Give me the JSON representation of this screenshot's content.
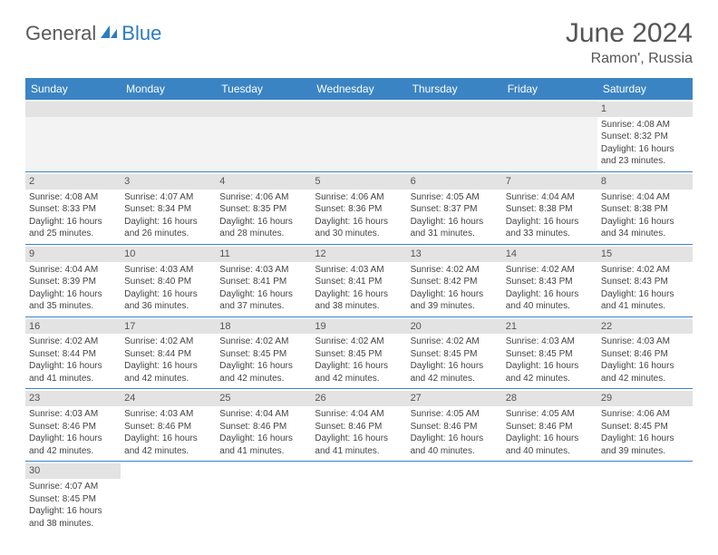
{
  "logo": {
    "text1": "General",
    "text2": "Blue"
  },
  "title": "June 2024",
  "location": "Ramon', Russia",
  "weekdays": [
    "Sunday",
    "Monday",
    "Tuesday",
    "Wednesday",
    "Thursday",
    "Friday",
    "Saturday"
  ],
  "colors": {
    "header_bg": "#3b84c4",
    "header_text": "#ffffff",
    "daynum_bg": "#e3e3e3",
    "logo_gray": "#5a5a5a",
    "logo_blue": "#2d7bc0",
    "text": "#444444",
    "border": "#3b84c4"
  },
  "weeks": [
    [
      {
        "n": "",
        "sr": "",
        "ss": "",
        "dl": ""
      },
      {
        "n": "",
        "sr": "",
        "ss": "",
        "dl": ""
      },
      {
        "n": "",
        "sr": "",
        "ss": "",
        "dl": ""
      },
      {
        "n": "",
        "sr": "",
        "ss": "",
        "dl": ""
      },
      {
        "n": "",
        "sr": "",
        "ss": "",
        "dl": ""
      },
      {
        "n": "",
        "sr": "",
        "ss": "",
        "dl": ""
      },
      {
        "n": "1",
        "sr": "Sunrise: 4:08 AM",
        "ss": "Sunset: 8:32 PM",
        "dl": "Daylight: 16 hours and 23 minutes."
      }
    ],
    [
      {
        "n": "2",
        "sr": "Sunrise: 4:08 AM",
        "ss": "Sunset: 8:33 PM",
        "dl": "Daylight: 16 hours and 25 minutes."
      },
      {
        "n": "3",
        "sr": "Sunrise: 4:07 AM",
        "ss": "Sunset: 8:34 PM",
        "dl": "Daylight: 16 hours and 26 minutes."
      },
      {
        "n": "4",
        "sr": "Sunrise: 4:06 AM",
        "ss": "Sunset: 8:35 PM",
        "dl": "Daylight: 16 hours and 28 minutes."
      },
      {
        "n": "5",
        "sr": "Sunrise: 4:06 AM",
        "ss": "Sunset: 8:36 PM",
        "dl": "Daylight: 16 hours and 30 minutes."
      },
      {
        "n": "6",
        "sr": "Sunrise: 4:05 AM",
        "ss": "Sunset: 8:37 PM",
        "dl": "Daylight: 16 hours and 31 minutes."
      },
      {
        "n": "7",
        "sr": "Sunrise: 4:04 AM",
        "ss": "Sunset: 8:38 PM",
        "dl": "Daylight: 16 hours and 33 minutes."
      },
      {
        "n": "8",
        "sr": "Sunrise: 4:04 AM",
        "ss": "Sunset: 8:38 PM",
        "dl": "Daylight: 16 hours and 34 minutes."
      }
    ],
    [
      {
        "n": "9",
        "sr": "Sunrise: 4:04 AM",
        "ss": "Sunset: 8:39 PM",
        "dl": "Daylight: 16 hours and 35 minutes."
      },
      {
        "n": "10",
        "sr": "Sunrise: 4:03 AM",
        "ss": "Sunset: 8:40 PM",
        "dl": "Daylight: 16 hours and 36 minutes."
      },
      {
        "n": "11",
        "sr": "Sunrise: 4:03 AM",
        "ss": "Sunset: 8:41 PM",
        "dl": "Daylight: 16 hours and 37 minutes."
      },
      {
        "n": "12",
        "sr": "Sunrise: 4:03 AM",
        "ss": "Sunset: 8:41 PM",
        "dl": "Daylight: 16 hours and 38 minutes."
      },
      {
        "n": "13",
        "sr": "Sunrise: 4:02 AM",
        "ss": "Sunset: 8:42 PM",
        "dl": "Daylight: 16 hours and 39 minutes."
      },
      {
        "n": "14",
        "sr": "Sunrise: 4:02 AM",
        "ss": "Sunset: 8:43 PM",
        "dl": "Daylight: 16 hours and 40 minutes."
      },
      {
        "n": "15",
        "sr": "Sunrise: 4:02 AM",
        "ss": "Sunset: 8:43 PM",
        "dl": "Daylight: 16 hours and 41 minutes."
      }
    ],
    [
      {
        "n": "16",
        "sr": "Sunrise: 4:02 AM",
        "ss": "Sunset: 8:44 PM",
        "dl": "Daylight: 16 hours and 41 minutes."
      },
      {
        "n": "17",
        "sr": "Sunrise: 4:02 AM",
        "ss": "Sunset: 8:44 PM",
        "dl": "Daylight: 16 hours and 42 minutes."
      },
      {
        "n": "18",
        "sr": "Sunrise: 4:02 AM",
        "ss": "Sunset: 8:45 PM",
        "dl": "Daylight: 16 hours and 42 minutes."
      },
      {
        "n": "19",
        "sr": "Sunrise: 4:02 AM",
        "ss": "Sunset: 8:45 PM",
        "dl": "Daylight: 16 hours and 42 minutes."
      },
      {
        "n": "20",
        "sr": "Sunrise: 4:02 AM",
        "ss": "Sunset: 8:45 PM",
        "dl": "Daylight: 16 hours and 42 minutes."
      },
      {
        "n": "21",
        "sr": "Sunrise: 4:03 AM",
        "ss": "Sunset: 8:45 PM",
        "dl": "Daylight: 16 hours and 42 minutes."
      },
      {
        "n": "22",
        "sr": "Sunrise: 4:03 AM",
        "ss": "Sunset: 8:46 PM",
        "dl": "Daylight: 16 hours and 42 minutes."
      }
    ],
    [
      {
        "n": "23",
        "sr": "Sunrise: 4:03 AM",
        "ss": "Sunset: 8:46 PM",
        "dl": "Daylight: 16 hours and 42 minutes."
      },
      {
        "n": "24",
        "sr": "Sunrise: 4:03 AM",
        "ss": "Sunset: 8:46 PM",
        "dl": "Daylight: 16 hours and 42 minutes."
      },
      {
        "n": "25",
        "sr": "Sunrise: 4:04 AM",
        "ss": "Sunset: 8:46 PM",
        "dl": "Daylight: 16 hours and 41 minutes."
      },
      {
        "n": "26",
        "sr": "Sunrise: 4:04 AM",
        "ss": "Sunset: 8:46 PM",
        "dl": "Daylight: 16 hours and 41 minutes."
      },
      {
        "n": "27",
        "sr": "Sunrise: 4:05 AM",
        "ss": "Sunset: 8:46 PM",
        "dl": "Daylight: 16 hours and 40 minutes."
      },
      {
        "n": "28",
        "sr": "Sunrise: 4:05 AM",
        "ss": "Sunset: 8:46 PM",
        "dl": "Daylight: 16 hours and 40 minutes."
      },
      {
        "n": "29",
        "sr": "Sunrise: 4:06 AM",
        "ss": "Sunset: 8:45 PM",
        "dl": "Daylight: 16 hours and 39 minutes."
      }
    ],
    [
      {
        "n": "30",
        "sr": "Sunrise: 4:07 AM",
        "ss": "Sunset: 8:45 PM",
        "dl": "Daylight: 16 hours and 38 minutes."
      },
      {
        "n": "",
        "sr": "",
        "ss": "",
        "dl": ""
      },
      {
        "n": "",
        "sr": "",
        "ss": "",
        "dl": ""
      },
      {
        "n": "",
        "sr": "",
        "ss": "",
        "dl": ""
      },
      {
        "n": "",
        "sr": "",
        "ss": "",
        "dl": ""
      },
      {
        "n": "",
        "sr": "",
        "ss": "",
        "dl": ""
      },
      {
        "n": "",
        "sr": "",
        "ss": "",
        "dl": ""
      }
    ]
  ]
}
